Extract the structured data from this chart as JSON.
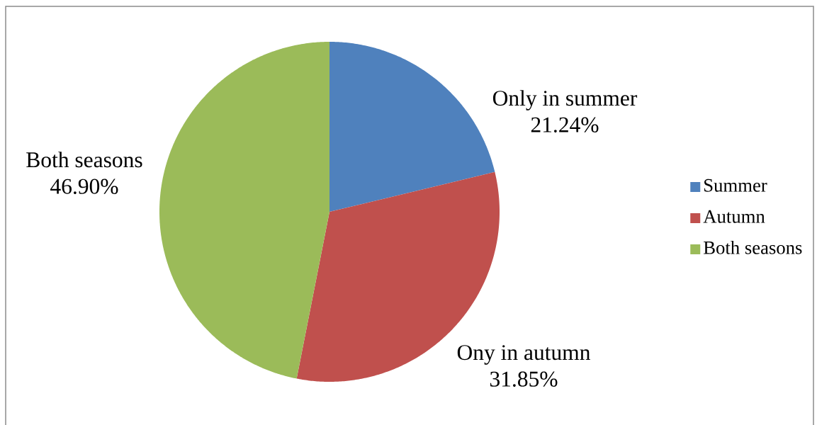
{
  "chart_data": {
    "type": "pie",
    "categories": [
      "Summer",
      "Autumn",
      "Both seasons"
    ],
    "values": [
      21.24,
      31.85,
      46.9
    ],
    "colors": [
      "#4f81bd",
      "#c0504d",
      "#9bbb59"
    ],
    "value_labels": [
      "21.24%",
      "31.85%",
      "46.90%"
    ],
    "annotations": [
      "Only in summer",
      "Ony in autumn",
      "Both seasons"
    ],
    "legend": "right"
  }
}
